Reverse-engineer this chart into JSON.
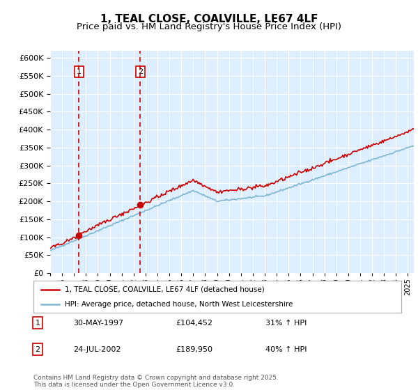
{
  "title": "1, TEAL CLOSE, COALVILLE, LE67 4LF",
  "subtitle": "Price paid vs. HM Land Registry's House Price Index (HPI)",
  "legend_line1": "1, TEAL CLOSE, COALVILLE, LE67 4LF (detached house)",
  "legend_line2": "HPI: Average price, detached house, North West Leicestershire",
  "sale1_date": "30-MAY-1997",
  "sale1_price": "£104,452",
  "sale1_hpi": "31% ↑ HPI",
  "sale1_year": 1997.41,
  "sale1_value": 104452,
  "sale2_date": "24-JUL-2002",
  "sale2_price": "£189,950",
  "sale2_hpi": "40% ↑ HPI",
  "sale2_year": 2002.56,
  "sale2_value": 189950,
  "red_color": "#cc0000",
  "blue_color": "#7eb6d4",
  "bg_plot_color": "#ddeeff",
  "bg_outer_color": "#ffffff",
  "grid_color": "#ffffff",
  "dashed_line_color": "#cc0000",
  "ylim_min": 0,
  "ylim_max": 620000,
  "xmin": 1995,
  "xmax": 2025.5,
  "footer": "Contains HM Land Registry data © Crown copyright and database right 2025.\nThis data is licensed under the Open Government Licence v3.0.",
  "title_fontsize": 11,
  "subtitle_fontsize": 9.5
}
